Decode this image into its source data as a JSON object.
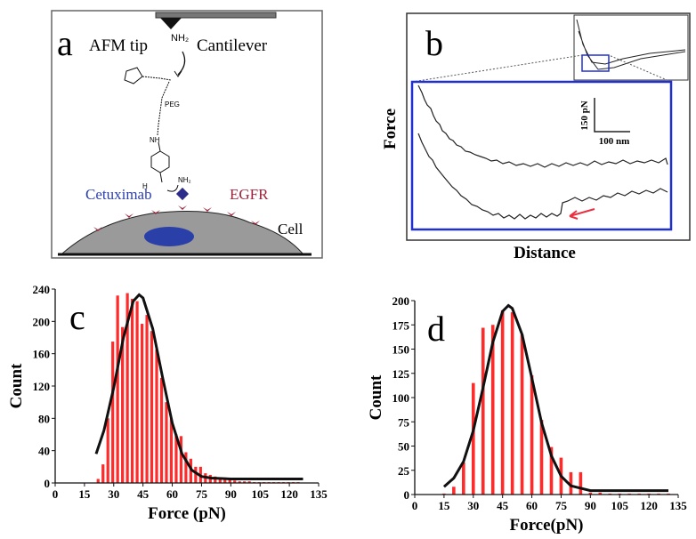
{
  "panel_a": {
    "label": "a",
    "afm_tip": "AFM tip",
    "cantilever": "Cantilever",
    "tip_amine": "NH₂",
    "peg": "PEG",
    "amide": "NH",
    "aldehyde_h": "H",
    "ligand_amine": "NH₂",
    "antibody": "Cetuximab",
    "receptor": "EGFR",
    "cell": "Cell"
  },
  "panel_b": {
    "label": "b",
    "ylabel": "Force",
    "xlabel": "Distance",
    "force_scale": "150 pN",
    "distance_scale": "100 nm"
  },
  "chart_data": [
    {
      "type": "bar",
      "label": "c",
      "xlabel": "Force (pN)",
      "ylabel": "Count",
      "color": "#ff2a2a",
      "fit_color": "#111111",
      "x": [
        22,
        24.5,
        27,
        29.5,
        32,
        34.5,
        37,
        39.5,
        42,
        44.5,
        47,
        49.5,
        52,
        54.5,
        57,
        59.5,
        62,
        64.5,
        67,
        69.5,
        72,
        74.5,
        77,
        79.5,
        82,
        84.5,
        87,
        89.5,
        92,
        94.5,
        97,
        99.5,
        102,
        104.5,
        107,
        109.5,
        112,
        114.5,
        117,
        119.5,
        122,
        124.5
      ],
      "values": [
        5,
        23,
        80,
        175,
        232,
        193,
        235,
        228,
        225,
        197,
        208,
        188,
        165,
        130,
        100,
        80,
        60,
        58,
        38,
        30,
        20,
        20,
        12,
        10,
        8,
        7,
        5,
        4,
        3,
        2,
        2,
        2,
        1,
        1,
        1,
        1,
        1,
        1,
        1,
        1,
        1,
        1
      ],
      "fit": {
        "x": [
          21,
          25,
          30,
          35,
          40,
          43,
          45,
          50,
          55,
          60,
          65,
          70,
          75,
          80,
          90,
          100,
          110,
          120,
          127
        ],
        "values": [
          36,
          65,
          118,
          180,
          225,
          233,
          229,
          191,
          131,
          74,
          36,
          16,
          8,
          6,
          5,
          5,
          5,
          5,
          5
        ]
      },
      "xlim": [
        0,
        135
      ],
      "xticks": [
        0,
        15,
        30,
        45,
        60,
        75,
        90,
        105,
        120,
        135
      ],
      "ylim": [
        0,
        240
      ],
      "yticks": [
        0,
        40,
        80,
        120,
        160,
        200,
        240
      ]
    },
    {
      "type": "bar",
      "label": "d",
      "xlabel": "Force(pN)",
      "ylabel": "Count",
      "color": "#ff2a2a",
      "fit_color": "#111111",
      "x": [
        15,
        20,
        25,
        30,
        35,
        40,
        45,
        50,
        55,
        60,
        65,
        70,
        75,
        80,
        85,
        90,
        95,
        100,
        105,
        110,
        115,
        120,
        125,
        130
      ],
      "values": [
        1,
        8,
        33,
        115,
        172,
        175,
        190,
        188,
        165,
        123,
        77,
        49,
        38,
        23,
        23,
        2,
        2,
        1,
        1,
        1,
        1,
        1,
        1,
        1
      ],
      "fit": {
        "x": [
          15,
          20,
          25,
          30,
          35,
          40,
          45,
          48,
          50,
          55,
          60,
          65,
          70,
          75,
          80,
          90,
          100,
          110,
          120,
          130
        ],
        "values": [
          8,
          17,
          34,
          66,
          110,
          157,
          189,
          195,
          192,
          165,
          120,
          74,
          40,
          19,
          9,
          4,
          4,
          4,
          4,
          4
        ]
      },
      "xlim": [
        0,
        135
      ],
      "xticks": [
        0,
        15,
        30,
        45,
        60,
        75,
        90,
        105,
        120,
        135
      ],
      "ylim": [
        0,
        200
      ],
      "yticks": [
        0,
        25,
        50,
        75,
        100,
        125,
        150,
        175,
        200
      ]
    }
  ]
}
